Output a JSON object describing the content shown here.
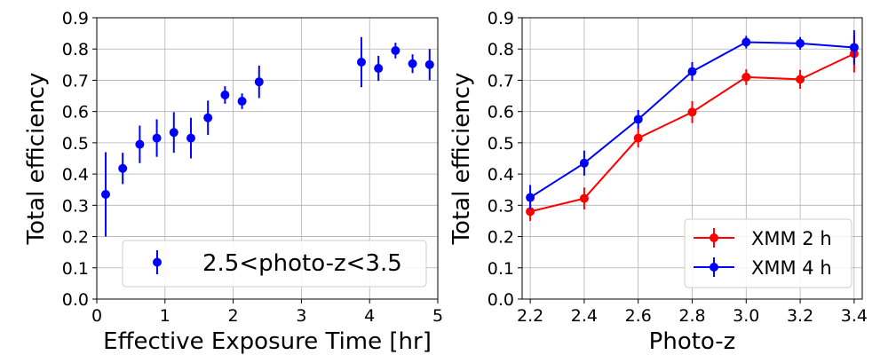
{
  "chart_data": [
    {
      "type": "scatter",
      "xlabel": "Effective Exposure Time [hr]",
      "ylabel": "Total efficiency",
      "xlim": [
        0,
        5
      ],
      "ylim": [
        0,
        0.9
      ],
      "xticks": [
        "0",
        "1",
        "2",
        "3",
        "4",
        "5"
      ],
      "yticks": [
        "0.0",
        "0.1",
        "0.2",
        "0.3",
        "0.4",
        "0.5",
        "0.6",
        "0.7",
        "0.8",
        "0.9"
      ],
      "grid": true,
      "legend_position": "lower-right",
      "series": [
        {
          "name": "2.5<photo-z<3.5",
          "color": "#0000ff",
          "marker": "circle",
          "x": [
            0.13,
            0.38,
            0.63,
            0.88,
            1.13,
            1.38,
            1.63,
            1.88,
            2.13,
            2.38,
            3.88,
            4.13,
            4.38,
            4.63,
            4.88
          ],
          "y": [
            0.335,
            0.418,
            0.495,
            0.515,
            0.533,
            0.515,
            0.58,
            0.653,
            0.633,
            0.695,
            0.758,
            0.738,
            0.795,
            0.753,
            0.75
          ],
          "err": [
            0.135,
            0.05,
            0.06,
            0.06,
            0.065,
            0.065,
            0.055,
            0.028,
            0.025,
            0.052,
            0.08,
            0.04,
            0.025,
            0.03,
            0.05
          ]
        }
      ]
    },
    {
      "type": "line",
      "xlabel": "Photo-z",
      "ylabel": "Total efficiency",
      "xlim": [
        2.17,
        3.43
      ],
      "ylim": [
        0,
        0.9
      ],
      "xticks": [
        "2.2",
        "2.4",
        "2.6",
        "2.8",
        "3.0",
        "3.2",
        "3.4"
      ],
      "yticks": [
        "0.0",
        "0.1",
        "0.2",
        "0.3",
        "0.4",
        "0.5",
        "0.6",
        "0.7",
        "0.8",
        "0.9"
      ],
      "grid": true,
      "legend_position": "lower-right",
      "series": [
        {
          "name": "XMM 2 h",
          "color": "#ff0000",
          "marker": "circle",
          "x": [
            2.2,
            2.4,
            2.6,
            2.8,
            3.0,
            3.2,
            3.4
          ],
          "y": [
            0.28,
            0.322,
            0.515,
            0.598,
            0.71,
            0.703,
            0.785
          ],
          "err": [
            0.03,
            0.035,
            0.03,
            0.035,
            0.025,
            0.03,
            0.06
          ]
        },
        {
          "name": "XMM 4 h",
          "color": "#0000ff",
          "marker": "circle",
          "x": [
            2.2,
            2.4,
            2.6,
            2.8,
            3.0,
            3.2,
            3.4
          ],
          "y": [
            0.325,
            0.435,
            0.575,
            0.728,
            0.822,
            0.818,
            0.805
          ],
          "err": [
            0.04,
            0.04,
            0.03,
            0.03,
            0.02,
            0.02,
            0.055
          ]
        }
      ]
    }
  ]
}
